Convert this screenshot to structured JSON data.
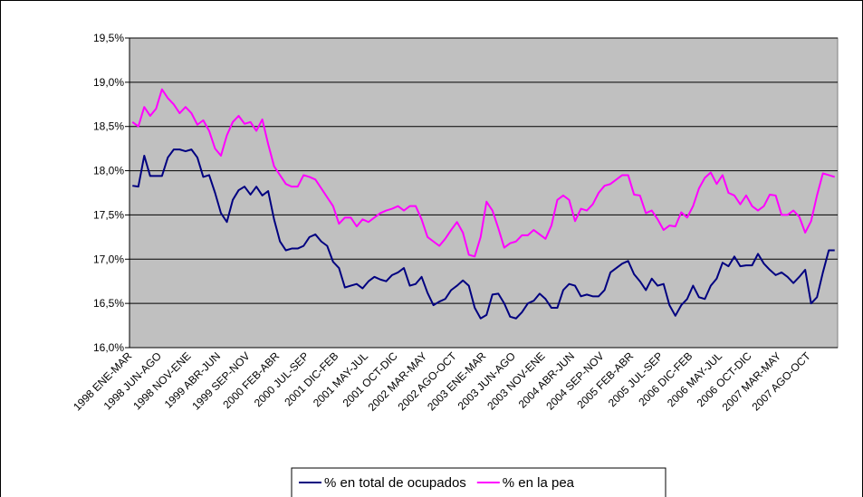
{
  "chart_data": {
    "type": "line",
    "categories": [
      "1998 ENE-MAR",
      null,
      null,
      null,
      null,
      "1998 JUN-AGO",
      null,
      null,
      null,
      null,
      "1998 NOV-ENE",
      null,
      null,
      null,
      null,
      "1999 ABR-JUN",
      null,
      null,
      null,
      null,
      "1999 SEP-NOV",
      null,
      null,
      null,
      null,
      "2000 FEB-ABR",
      null,
      null,
      null,
      null,
      "2000 JUL-SEP",
      null,
      null,
      null,
      null,
      "2001 DIC-FEB",
      null,
      null,
      null,
      null,
      "2001 MAY-JUL",
      null,
      null,
      null,
      null,
      "2001 OCT-DIC",
      null,
      null,
      null,
      null,
      "2002 MAR-MAY",
      null,
      null,
      null,
      null,
      "2002 AGO-OCT",
      null,
      null,
      null,
      null,
      "2003 ENE-MAR",
      null,
      null,
      null,
      null,
      "2003 JUN-AGO",
      null,
      null,
      null,
      null,
      "2003 NOV-ENE",
      null,
      null,
      null,
      null,
      "2004 ABR-JUN",
      null,
      null,
      null,
      null,
      "2004 SEP-NOV",
      null,
      null,
      null,
      null,
      "2005 FEB-ABR",
      null,
      null,
      null,
      null,
      "2005 JUL-SEP",
      null,
      null,
      null,
      null,
      "2006 DIC-FEB",
      null,
      null,
      null,
      null,
      "2006 MAY-JUL",
      null,
      null,
      null,
      null,
      "2006 OCT-DIC",
      null,
      null,
      null,
      null,
      "2007 MAR-MAY",
      null,
      null,
      null,
      null,
      "2007 AGO-OCT",
      null,
      null,
      null,
      null
    ],
    "series": [
      {
        "name": "% en total de ocupados",
        "color": "#000080",
        "values": [
          17.83,
          17.82,
          18.17,
          17.94,
          17.94,
          17.94,
          18.15,
          18.24,
          18.24,
          18.22,
          18.24,
          18.15,
          17.93,
          17.95,
          17.75,
          17.52,
          17.42,
          17.67,
          17.78,
          17.82,
          17.73,
          17.82,
          17.72,
          17.77,
          17.45,
          17.2,
          17.1,
          17.12,
          17.12,
          17.15,
          17.25,
          17.28,
          17.2,
          17.15,
          16.97,
          16.9,
          16.68,
          16.7,
          16.72,
          16.67,
          16.75,
          16.8,
          16.77,
          16.75,
          16.82,
          16.85,
          16.9,
          16.7,
          16.72,
          16.8,
          16.62,
          16.48,
          16.52,
          16.55,
          16.65,
          16.7,
          16.76,
          16.7,
          16.45,
          16.33,
          16.37,
          16.6,
          16.61,
          16.5,
          16.35,
          16.33,
          16.4,
          16.5,
          16.53,
          16.61,
          16.55,
          16.45,
          16.45,
          16.65,
          16.72,
          16.7,
          16.58,
          16.6,
          16.58,
          16.58,
          16.65,
          16.85,
          16.9,
          16.95,
          16.98,
          16.83,
          16.75,
          16.65,
          16.78,
          16.7,
          16.72,
          16.48,
          16.36,
          16.48,
          16.55,
          16.7,
          16.57,
          16.55,
          16.7,
          16.78,
          16.96,
          16.92,
          17.03,
          16.92,
          16.93,
          16.93,
          17.06,
          16.95,
          16.88,
          16.82,
          16.85,
          16.8,
          16.73,
          16.8,
          16.88,
          16.5,
          16.57,
          16.85,
          17.1,
          17.1
        ]
      },
      {
        "name": "% en la pea",
        "color": "#ff00ff",
        "values": [
          18.55,
          18.5,
          18.72,
          18.62,
          18.7,
          18.92,
          18.82,
          18.75,
          18.65,
          18.72,
          18.65,
          18.52,
          18.57,
          18.45,
          18.25,
          18.17,
          18.4,
          18.55,
          18.62,
          18.53,
          18.55,
          18.45,
          18.58,
          18.3,
          18.05,
          17.95,
          17.85,
          17.82,
          17.82,
          17.95,
          17.93,
          17.9,
          17.8,
          17.7,
          17.6,
          17.4,
          17.47,
          17.47,
          17.37,
          17.45,
          17.42,
          17.47,
          17.52,
          17.55,
          17.57,
          17.6,
          17.55,
          17.6,
          17.6,
          17.45,
          17.25,
          17.2,
          17.15,
          17.23,
          17.33,
          17.42,
          17.3,
          17.05,
          17.03,
          17.25,
          17.65,
          17.55,
          17.35,
          17.13,
          17.18,
          17.2,
          17.27,
          17.27,
          17.33,
          17.28,
          17.23,
          17.38,
          17.67,
          17.72,
          17.67,
          17.43,
          17.57,
          17.55,
          17.62,
          17.75,
          17.83,
          17.85,
          17.9,
          17.95,
          17.95,
          17.73,
          17.72,
          17.52,
          17.55,
          17.45,
          17.33,
          17.38,
          17.37,
          17.53,
          17.47,
          17.6,
          17.8,
          17.92,
          17.98,
          17.85,
          17.95,
          17.75,
          17.72,
          17.62,
          17.72,
          17.6,
          17.55,
          17.6,
          17.73,
          17.72,
          17.5,
          17.5,
          17.55,
          17.48,
          17.3,
          17.43,
          17.72,
          17.97,
          17.95,
          17.93
        ]
      }
    ],
    "ylim": [
      16.0,
      19.5
    ],
    "yticks": [
      {
        "value": 16.0,
        "label": "16,0%"
      },
      {
        "value": 16.5,
        "label": "16,5%"
      },
      {
        "value": 17.0,
        "label": "17,0%"
      },
      {
        "value": 17.5,
        "label": "17,5%"
      },
      {
        "value": 18.0,
        "label": "18,0%"
      },
      {
        "value": 18.5,
        "label": "18,5%"
      },
      {
        "value": 19.0,
        "label": "19,0%"
      },
      {
        "value": 19.5,
        "label": "19,5%"
      }
    ],
    "grid": true,
    "legend": "bottom",
    "plot_background": "#c0c0c0"
  }
}
